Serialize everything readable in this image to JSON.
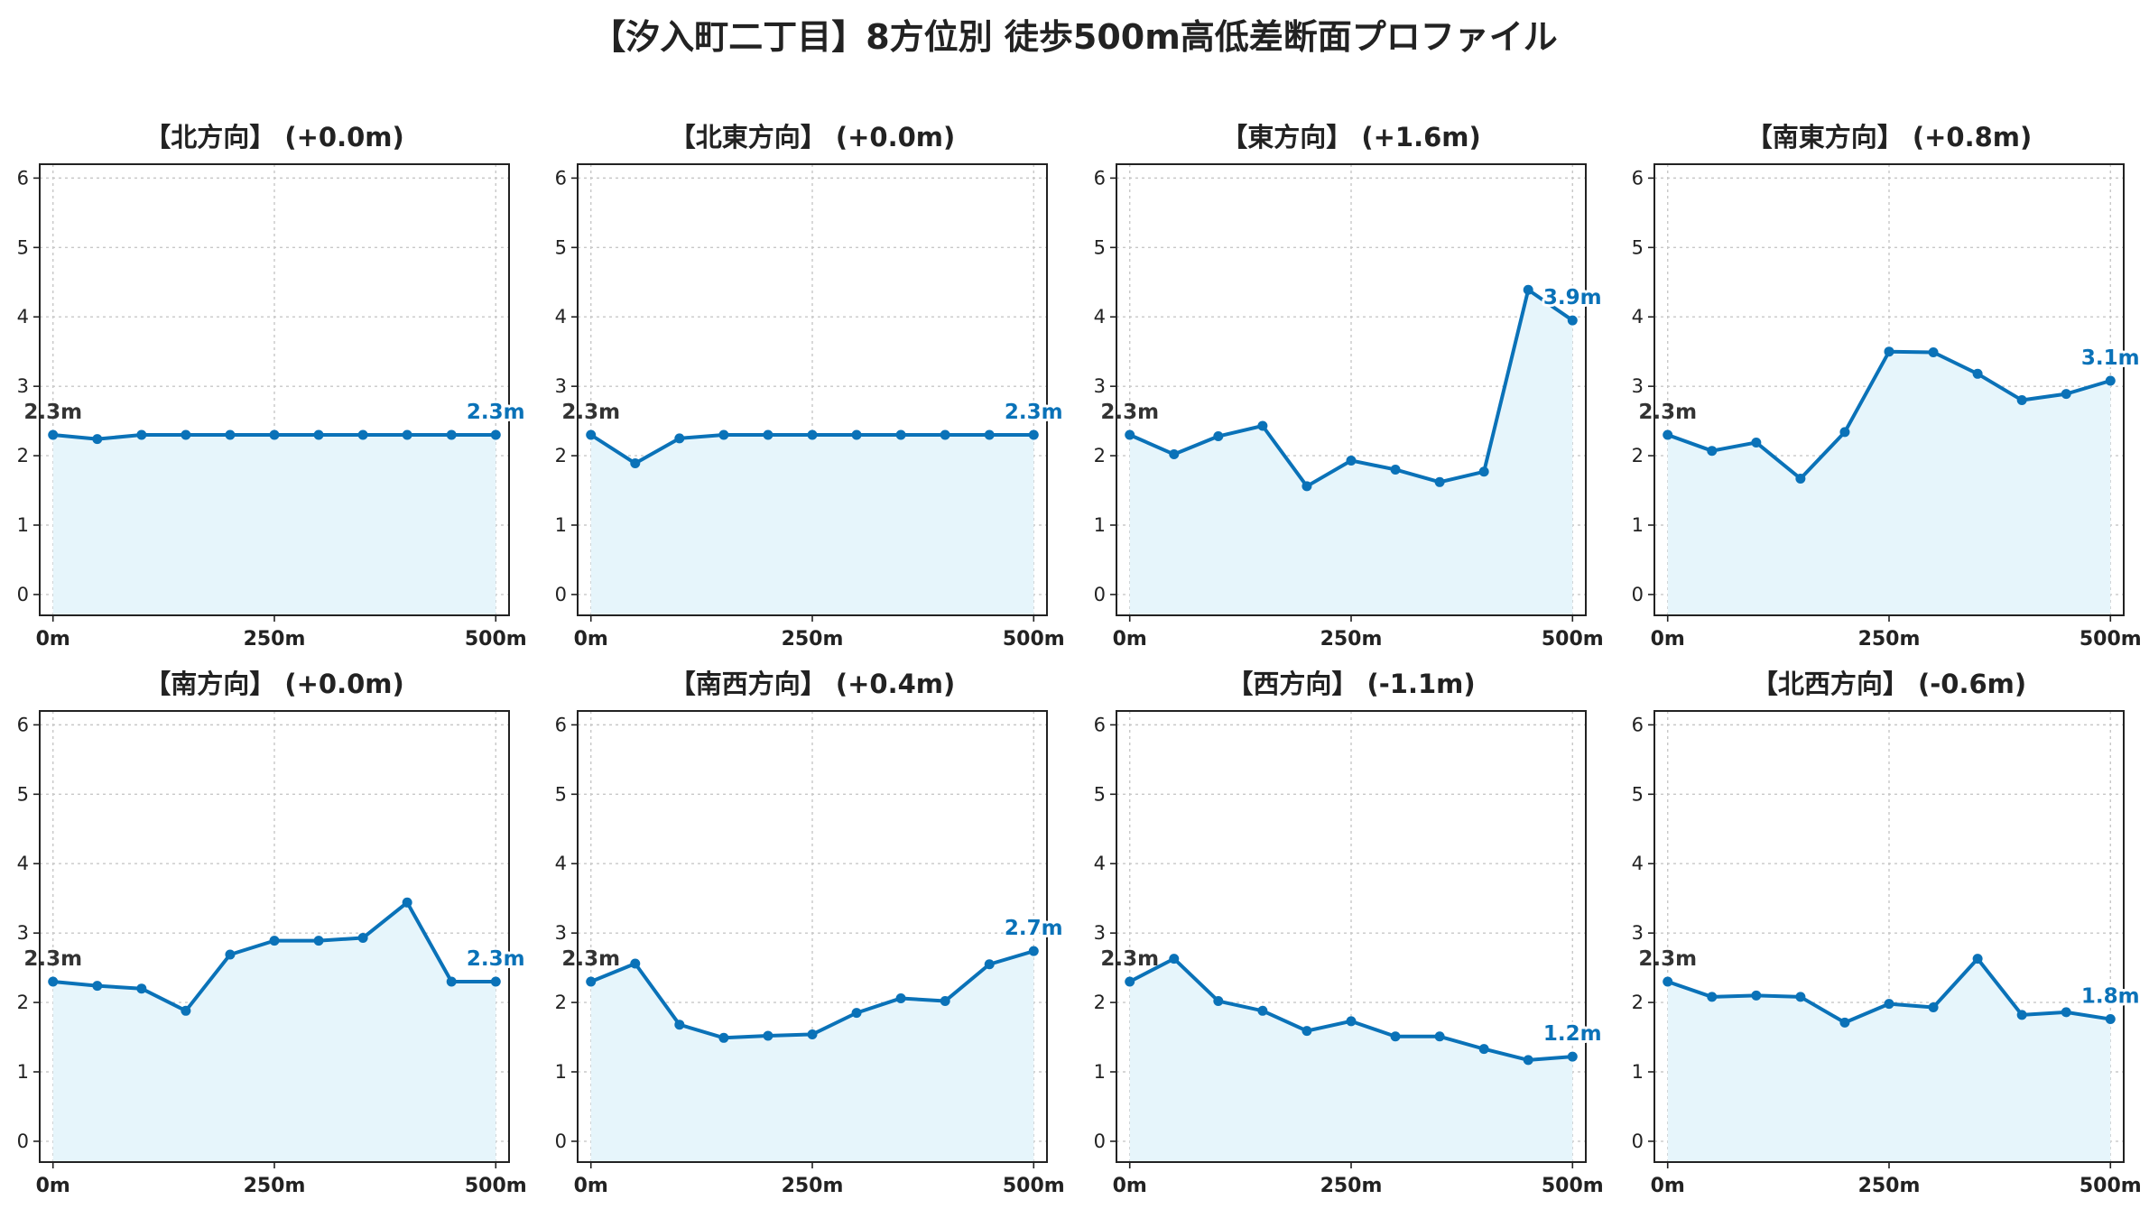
{
  "title": "【汐入町二丁目】8方位別 徒歩500m高低差断面プロファイル",
  "colors": {
    "line": "#0a72b8",
    "fill": "#e6f5fb",
    "grid": "#c8c8c8",
    "start_label": "#333333"
  },
  "chart_data": [
    {
      "type": "area",
      "title": "【北方向】 (+0.0m)",
      "x": [
        0,
        50,
        100,
        150,
        200,
        250,
        300,
        350,
        400,
        450,
        500
      ],
      "y": [
        2.3,
        2.24,
        2.3,
        2.3,
        2.3,
        2.3,
        2.3,
        2.3,
        2.3,
        2.3,
        2.3
      ],
      "start_label": "2.3m",
      "end_label": "2.3m",
      "xticks": [
        "0m",
        "250m",
        "500m"
      ],
      "yticks": [
        "0",
        "1",
        "2",
        "3",
        "4",
        "5",
        "6"
      ],
      "ylim": [
        -0.3,
        6.2
      ],
      "grid": true
    },
    {
      "type": "area",
      "title": "【北東方向】 (+0.0m)",
      "x": [
        0,
        50,
        100,
        150,
        200,
        250,
        300,
        350,
        400,
        450,
        500
      ],
      "y": [
        2.3,
        1.89,
        2.25,
        2.3,
        2.3,
        2.3,
        2.3,
        2.3,
        2.3,
        2.3,
        2.3
      ],
      "start_label": "2.3m",
      "end_label": "2.3m",
      "xticks": [
        "0m",
        "250m",
        "500m"
      ],
      "yticks": [
        "0",
        "1",
        "2",
        "3",
        "4",
        "5",
        "6"
      ],
      "ylim": [
        -0.3,
        6.2
      ],
      "grid": true
    },
    {
      "type": "area",
      "title": "【東方向】 (+1.6m)",
      "x": [
        0,
        50,
        100,
        150,
        200,
        250,
        300,
        350,
        400,
        450,
        500
      ],
      "y": [
        2.3,
        2.02,
        2.28,
        2.43,
        1.56,
        1.93,
        1.8,
        1.62,
        1.77,
        4.39,
        3.95
      ],
      "start_label": "2.3m",
      "end_label": "3.9m",
      "xticks": [
        "0m",
        "250m",
        "500m"
      ],
      "yticks": [
        "0",
        "1",
        "2",
        "3",
        "4",
        "5",
        "6"
      ],
      "ylim": [
        -0.3,
        6.2
      ],
      "grid": true
    },
    {
      "type": "area",
      "title": "【南東方向】 (+0.8m)",
      "x": [
        0,
        50,
        100,
        150,
        200,
        250,
        300,
        350,
        400,
        450,
        500
      ],
      "y": [
        2.3,
        2.07,
        2.19,
        1.67,
        2.34,
        3.5,
        3.49,
        3.18,
        2.8,
        2.89,
        3.08
      ],
      "start_label": "2.3m",
      "end_label": "3.1m",
      "xticks": [
        "0m",
        "250m",
        "500m"
      ],
      "yticks": [
        "0",
        "1",
        "2",
        "3",
        "4",
        "5",
        "6"
      ],
      "ylim": [
        -0.3,
        6.2
      ],
      "grid": true
    },
    {
      "type": "area",
      "title": "【南方向】 (+0.0m)",
      "x": [
        0,
        50,
        100,
        150,
        200,
        250,
        300,
        350,
        400,
        450,
        500
      ],
      "y": [
        2.3,
        2.24,
        2.2,
        1.88,
        2.69,
        2.89,
        2.89,
        2.93,
        3.44,
        2.3,
        2.3
      ],
      "start_label": "2.3m",
      "end_label": "2.3m",
      "xticks": [
        "0m",
        "250m",
        "500m"
      ],
      "yticks": [
        "0",
        "1",
        "2",
        "3",
        "4",
        "5",
        "6"
      ],
      "ylim": [
        -0.3,
        6.2
      ],
      "grid": true
    },
    {
      "type": "area",
      "title": "【南西方向】 (+0.4m)",
      "x": [
        0,
        50,
        100,
        150,
        200,
        250,
        300,
        350,
        400,
        450,
        500
      ],
      "y": [
        2.3,
        2.56,
        1.68,
        1.49,
        1.52,
        1.54,
        1.85,
        2.06,
        2.02,
        2.55,
        2.74
      ],
      "start_label": "2.3m",
      "end_label": "2.7m",
      "xticks": [
        "0m",
        "250m",
        "500m"
      ],
      "yticks": [
        "0",
        "1",
        "2",
        "3",
        "4",
        "5",
        "6"
      ],
      "ylim": [
        -0.3,
        6.2
      ],
      "grid": true
    },
    {
      "type": "area",
      "title": "【西方向】 (-1.1m)",
      "x": [
        0,
        50,
        100,
        150,
        200,
        250,
        300,
        350,
        400,
        450,
        500
      ],
      "y": [
        2.3,
        2.63,
        2.02,
        1.88,
        1.59,
        1.73,
        1.51,
        1.51,
        1.33,
        1.17,
        1.22
      ],
      "start_label": "2.3m",
      "end_label": "1.2m",
      "xticks": [
        "0m",
        "250m",
        "500m"
      ],
      "yticks": [
        "0",
        "1",
        "2",
        "3",
        "4",
        "5",
        "6"
      ],
      "ylim": [
        -0.3,
        6.2
      ],
      "grid": true
    },
    {
      "type": "area",
      "title": "【北西方向】 (-0.6m)",
      "x": [
        0,
        50,
        100,
        150,
        200,
        250,
        300,
        350,
        400,
        450,
        500
      ],
      "y": [
        2.3,
        2.08,
        2.1,
        2.08,
        1.71,
        1.98,
        1.93,
        2.63,
        1.82,
        1.86,
        1.76
      ],
      "start_label": "2.3m",
      "end_label": "1.8m",
      "xticks": [
        "0m",
        "250m",
        "500m"
      ],
      "yticks": [
        "0",
        "1",
        "2",
        "3",
        "4",
        "5",
        "6"
      ],
      "ylim": [
        -0.3,
        6.2
      ],
      "grid": true
    }
  ]
}
